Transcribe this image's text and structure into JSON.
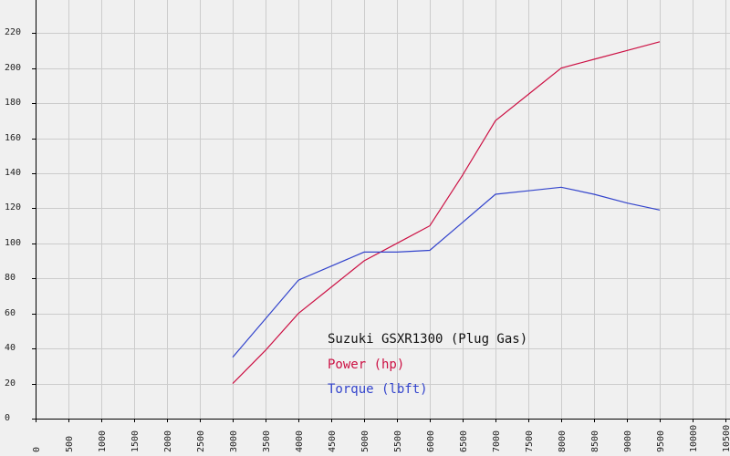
{
  "chart_data": {
    "type": "line",
    "title": "Suzuki GSXR1300 (Plug Gas)",
    "xlabel": "",
    "ylabel": "",
    "xlim": [
      0,
      10500
    ],
    "ylim": [
      0,
      230
    ],
    "x_ticks": [
      "0",
      "500",
      "1000",
      "1500",
      "2000",
      "2500",
      "3000",
      "3500",
      "4000",
      "4500",
      "5000",
      "5500",
      "6000",
      "6500",
      "7000",
      "7500",
      "8000",
      "8500",
      "9000",
      "9500",
      "10000",
      "10500"
    ],
    "y_ticks": [
      "0",
      "20",
      "40",
      "60",
      "80",
      "100",
      "120",
      "140",
      "160",
      "180",
      "200",
      "220"
    ],
    "grid": true,
    "legend_position": "bottom-center",
    "x": [
      3000,
      3500,
      4000,
      4500,
      5000,
      5500,
      6000,
      6500,
      7000,
      7500,
      8000,
      8500,
      9000,
      9500
    ],
    "series": [
      {
        "name": "Power (hp)",
        "color": "#cc1144",
        "values": [
          20,
          39,
          60,
          75,
          90,
          100,
          110,
          139,
          170,
          185,
          200,
          205,
          210,
          215
        ]
      },
      {
        "name": "Torque (lbft)",
        "color": "#3344cc",
        "values": [
          35,
          57,
          79,
          87,
          95,
          95,
          96,
          112,
          128,
          130,
          132,
          128,
          123,
          119
        ]
      }
    ],
    "colors": {
      "background": "#f0f0f0",
      "grid": "#cccccc",
      "axis": "#000000",
      "title": "#111111"
    }
  }
}
